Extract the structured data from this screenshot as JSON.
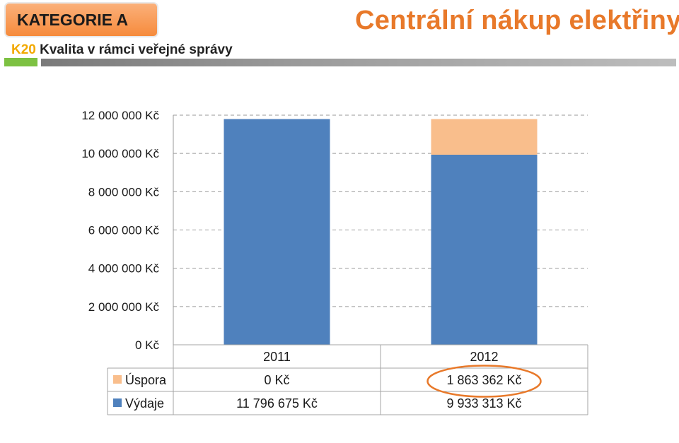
{
  "header": {
    "category": "KATEGORIE A",
    "code": "K20",
    "subtitle": "Kvalita v rámci veřejné správy",
    "title": "Centrální nákup elektřiny"
  },
  "colors": {
    "accent_orange": "#e8792a",
    "badge_orange": "#f68b3c",
    "code_yellow": "#f2a900",
    "strip_green": "#7dc142",
    "vydaje": "#4f81bd",
    "uspora": "#f9be8c",
    "highlight_ellipse": "#e8792a"
  },
  "chart_data": {
    "type": "bar",
    "stacked": true,
    "categories": [
      "2011",
      "2012"
    ],
    "series": [
      {
        "name": "Výdaje",
        "values": [
          11796675,
          9933313
        ],
        "labels": [
          "11 796 675 Kč",
          "9 933 313 Kč"
        ]
      },
      {
        "name": "Úspora",
        "values": [
          0,
          1863362
        ],
        "labels": [
          "0 Kč",
          "1 863 362 Kč"
        ]
      }
    ],
    "yticks": [
      "0 Kč",
      "2 000 000 Kč",
      "4 000 000 Kč",
      "6 000 000 Kč",
      "8 000 000 Kč",
      "10 000 000 Kč",
      "12 000 000 Kč"
    ],
    "ylim": [
      0,
      12000000
    ],
    "grid": "dashed horizontal",
    "legend": "data table below chart",
    "highlighted_cell": "Úspora 2012"
  }
}
